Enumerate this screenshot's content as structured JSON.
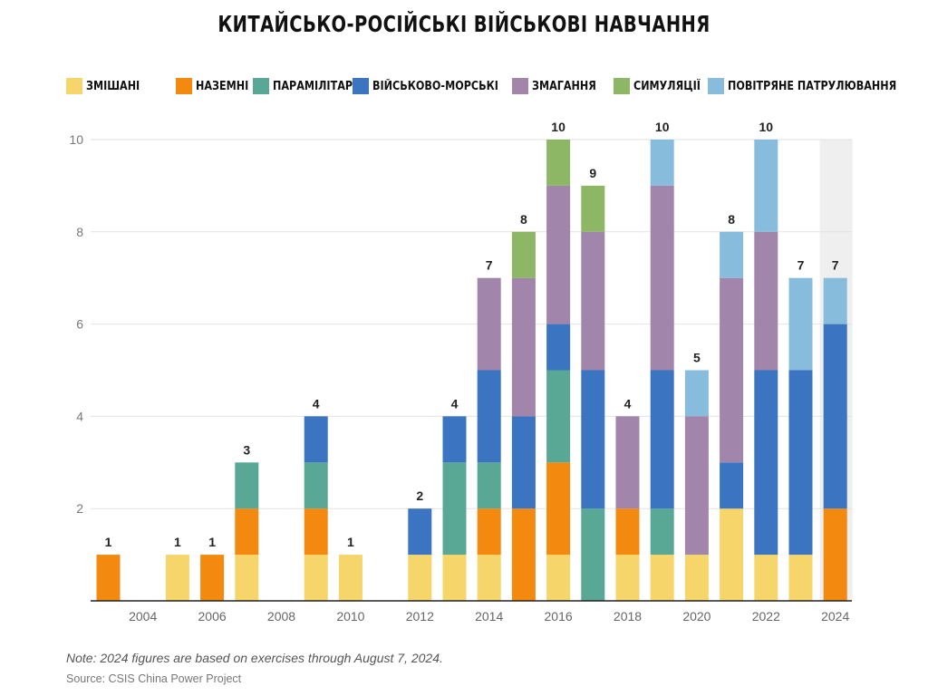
{
  "chart_data": {
    "type": "bar",
    "stacked": true,
    "title": "КИТАЙСЬКО-РОСІЙСЬКІ ВІЙСЬКОВІ НАВЧАННЯ",
    "xlabel": "",
    "ylabel": "",
    "ylim": [
      0,
      10
    ],
    "yticks": [
      "2",
      "4",
      "6",
      "8",
      "10"
    ],
    "xtick_labels": [
      "2004",
      "2006",
      "2008",
      "2010",
      "2012",
      "2014",
      "2016",
      "2018",
      "2020",
      "2022",
      "2024"
    ],
    "categories": [
      "2003",
      "2004",
      "2005",
      "2006",
      "2007",
      "2008",
      "2009",
      "2010",
      "2011",
      "2012",
      "2013",
      "2014",
      "2015",
      "2016",
      "2017",
      "2018",
      "2019",
      "2020",
      "2021",
      "2022",
      "2023",
      "2024"
    ],
    "series": [
      {
        "name": "ЗМІШАНІ",
        "color": "#f6d56b",
        "values": [
          0,
          0,
          1,
          0,
          1,
          0,
          1,
          1,
          0,
          1,
          1,
          1,
          0,
          1,
          0,
          1,
          1,
          1,
          2,
          1,
          1,
          0
        ]
      },
      {
        "name": "НАЗЕМНІ",
        "color": "#f4890f",
        "values": [
          1,
          0,
          0,
          1,
          1,
          0,
          1,
          0,
          0,
          0,
          0,
          1,
          2,
          2,
          0,
          1,
          0,
          0,
          0,
          0,
          0,
          2
        ]
      },
      {
        "name": "ПАРАМІЛІТАРНІ",
        "color": "#59a896",
        "values": [
          0,
          0,
          0,
          0,
          1,
          0,
          1,
          0,
          0,
          0,
          2,
          1,
          0,
          2,
          2,
          0,
          1,
          0,
          0,
          0,
          0,
          0
        ]
      },
      {
        "name": "ВІЙСЬКОВО-МОРСЬКІ",
        "color": "#3b74c0",
        "values": [
          0,
          0,
          0,
          0,
          0,
          0,
          1,
          0,
          0,
          1,
          1,
          2,
          2,
          1,
          3,
          0,
          3,
          0,
          1,
          4,
          4,
          4
        ]
      },
      {
        "name": "ЗМАГАННЯ",
        "color": "#a185aa",
        "values": [
          0,
          0,
          0,
          0,
          0,
          0,
          0,
          0,
          0,
          0,
          0,
          2,
          3,
          3,
          3,
          2,
          4,
          3,
          4,
          3,
          0,
          0
        ]
      },
      {
        "name": "СИМУЛЯЦІЇ",
        "color": "#8db665",
        "values": [
          0,
          0,
          0,
          0,
          0,
          0,
          0,
          0,
          0,
          0,
          0,
          0,
          1,
          1,
          1,
          0,
          0,
          0,
          0,
          0,
          0,
          0
        ]
      },
      {
        "name": "ПОВІТРЯНЕ ПАТРУЛЮВАННЯ",
        "color": "#88bcdd",
        "values": [
          0,
          0,
          0,
          0,
          0,
          0,
          0,
          0,
          0,
          0,
          0,
          0,
          0,
          0,
          0,
          0,
          1,
          1,
          1,
          2,
          2,
          1
        ]
      }
    ],
    "totals": [
      1,
      0,
      1,
      1,
      3,
      0,
      4,
      1,
      0,
      2,
      4,
      7,
      8,
      10,
      9,
      4,
      10,
      5,
      8,
      10,
      7,
      7
    ],
    "highlight_category": "2024",
    "legend_position": "top",
    "grid": true
  },
  "note": "Note: 2024 figures are based on exercises through August 7, 2024.",
  "source": "Source: CSIS China Power Project"
}
